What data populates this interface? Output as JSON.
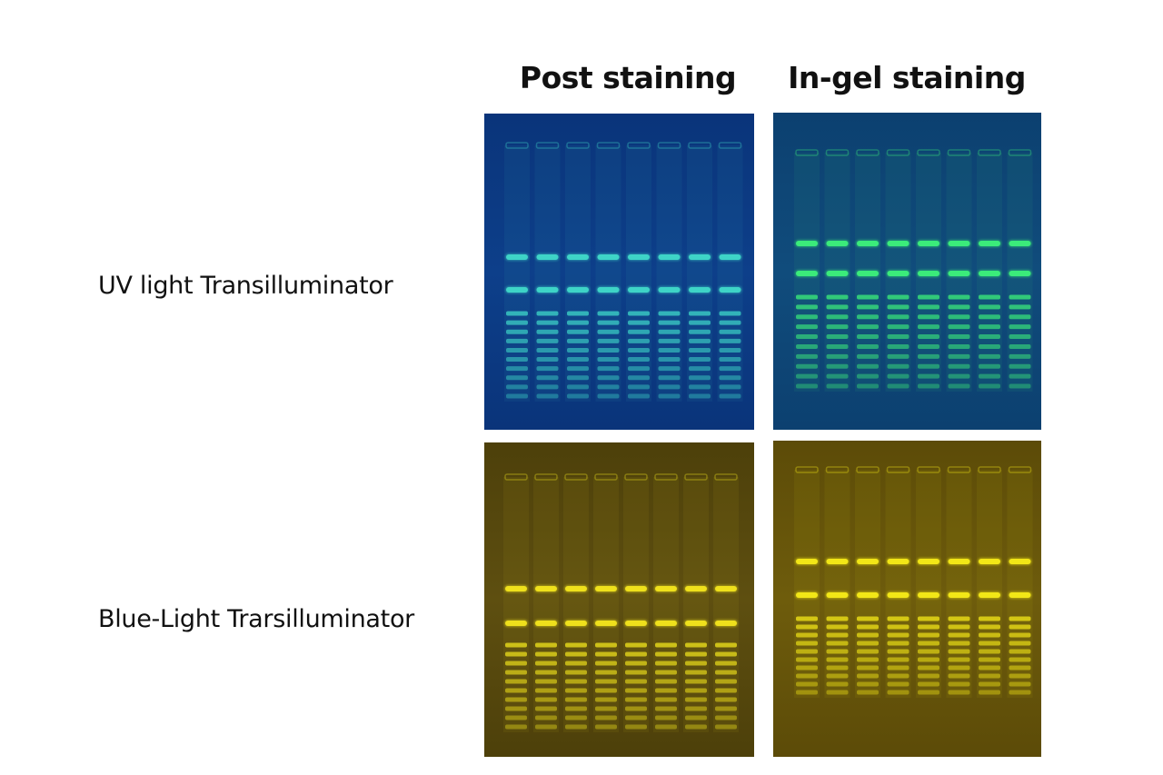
{
  "columns": [
    "Post staining",
    "In-gel staining"
  ],
  "rows": [
    "UV light Transilluminator",
    "Blue-Light Trarsilluminator"
  ]
}
